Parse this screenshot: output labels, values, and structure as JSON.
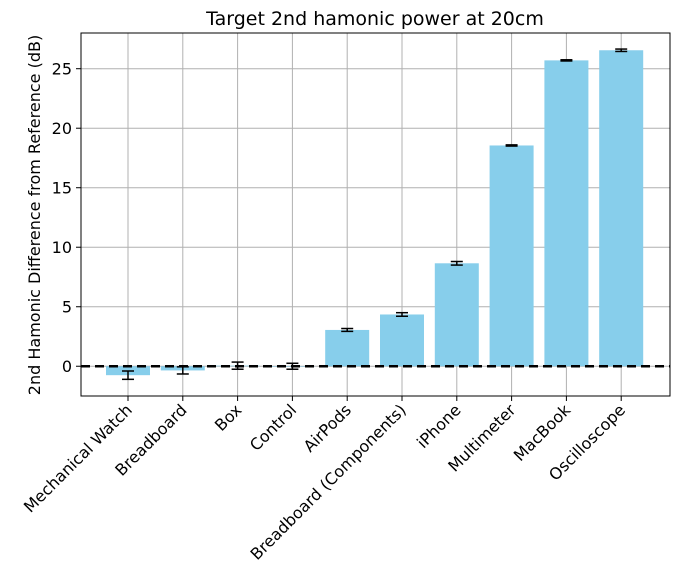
{
  "chart_data": {
    "type": "bar",
    "title": "Target 2nd hamonic power at 20cm",
    "xlabel": "",
    "ylabel": "2nd Hamonic Difference from Reference (dB)",
    "categories": [
      "Mechanical Watch",
      "Breadboard",
      "Box",
      "Control",
      "AirPods",
      "Breadboard (Components)",
      "iPhone",
      "Multimeter",
      "MacBook",
      "Oscilloscope"
    ],
    "values": [
      -0.75,
      -0.35,
      0.05,
      0.0,
      3.05,
      4.35,
      8.65,
      18.55,
      25.7,
      26.55
    ],
    "errors": [
      0.35,
      0.3,
      0.3,
      0.25,
      0.12,
      0.15,
      0.15,
      0.05,
      0.05,
      0.1
    ],
    "ylim": [
      -2.5,
      28.0
    ],
    "yticks": [
      0,
      5,
      10,
      15,
      20,
      25
    ],
    "reference_line": 0,
    "grid": true,
    "bar_color": "#87ceeb",
    "error_color": "#000000",
    "reference_line_color": "#000000",
    "grid_color": "#b0b0b0"
  }
}
